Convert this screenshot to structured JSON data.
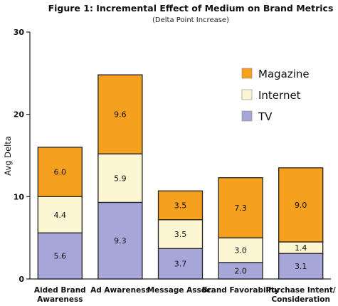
{
  "chart_data": {
    "type": "bar",
    "stacked": true,
    "title": "Figure 1: Incremental Effect of Medium on Brand Metrics",
    "subtitle": "(Delta Point Increase)",
    "ylabel": "Avg Delta",
    "xlabel": "",
    "ylim": [
      0,
      30
    ],
    "yticks": [
      0,
      10,
      20,
      30
    ],
    "grid": false,
    "legend_position": "top-right",
    "categories": [
      [
        "Aided Brand",
        "Awareness"
      ],
      [
        "Ad Awareness"
      ],
      [
        "Message Assoc."
      ],
      [
        "Brand Favorability"
      ],
      [
        "Purchase Intent/",
        "Consideration"
      ]
    ],
    "series": [
      {
        "name": "TV",
        "color": "#a6a7d8",
        "values": [
          5.6,
          9.3,
          3.7,
          2.0,
          3.1
        ],
        "labels": [
          "5.6",
          "9.3",
          "3.7",
          "2.0",
          "3.1"
        ]
      },
      {
        "name": "Internet",
        "color": "#fdf6d2",
        "values": [
          4.4,
          5.9,
          3.5,
          3.0,
          1.4
        ],
        "labels": [
          "4.4",
          "5.9",
          "3.5",
          "3.0",
          "1.4"
        ]
      },
      {
        "name": "Magazine",
        "color": "#f5a11f",
        "values": [
          6.0,
          9.6,
          3.5,
          7.3,
          9.0
        ],
        "labels": [
          "6.0",
          "9.6",
          "3.5",
          "7.3",
          "9.0"
        ]
      }
    ],
    "legend_order": [
      "Magazine",
      "Internet",
      "TV"
    ]
  }
}
